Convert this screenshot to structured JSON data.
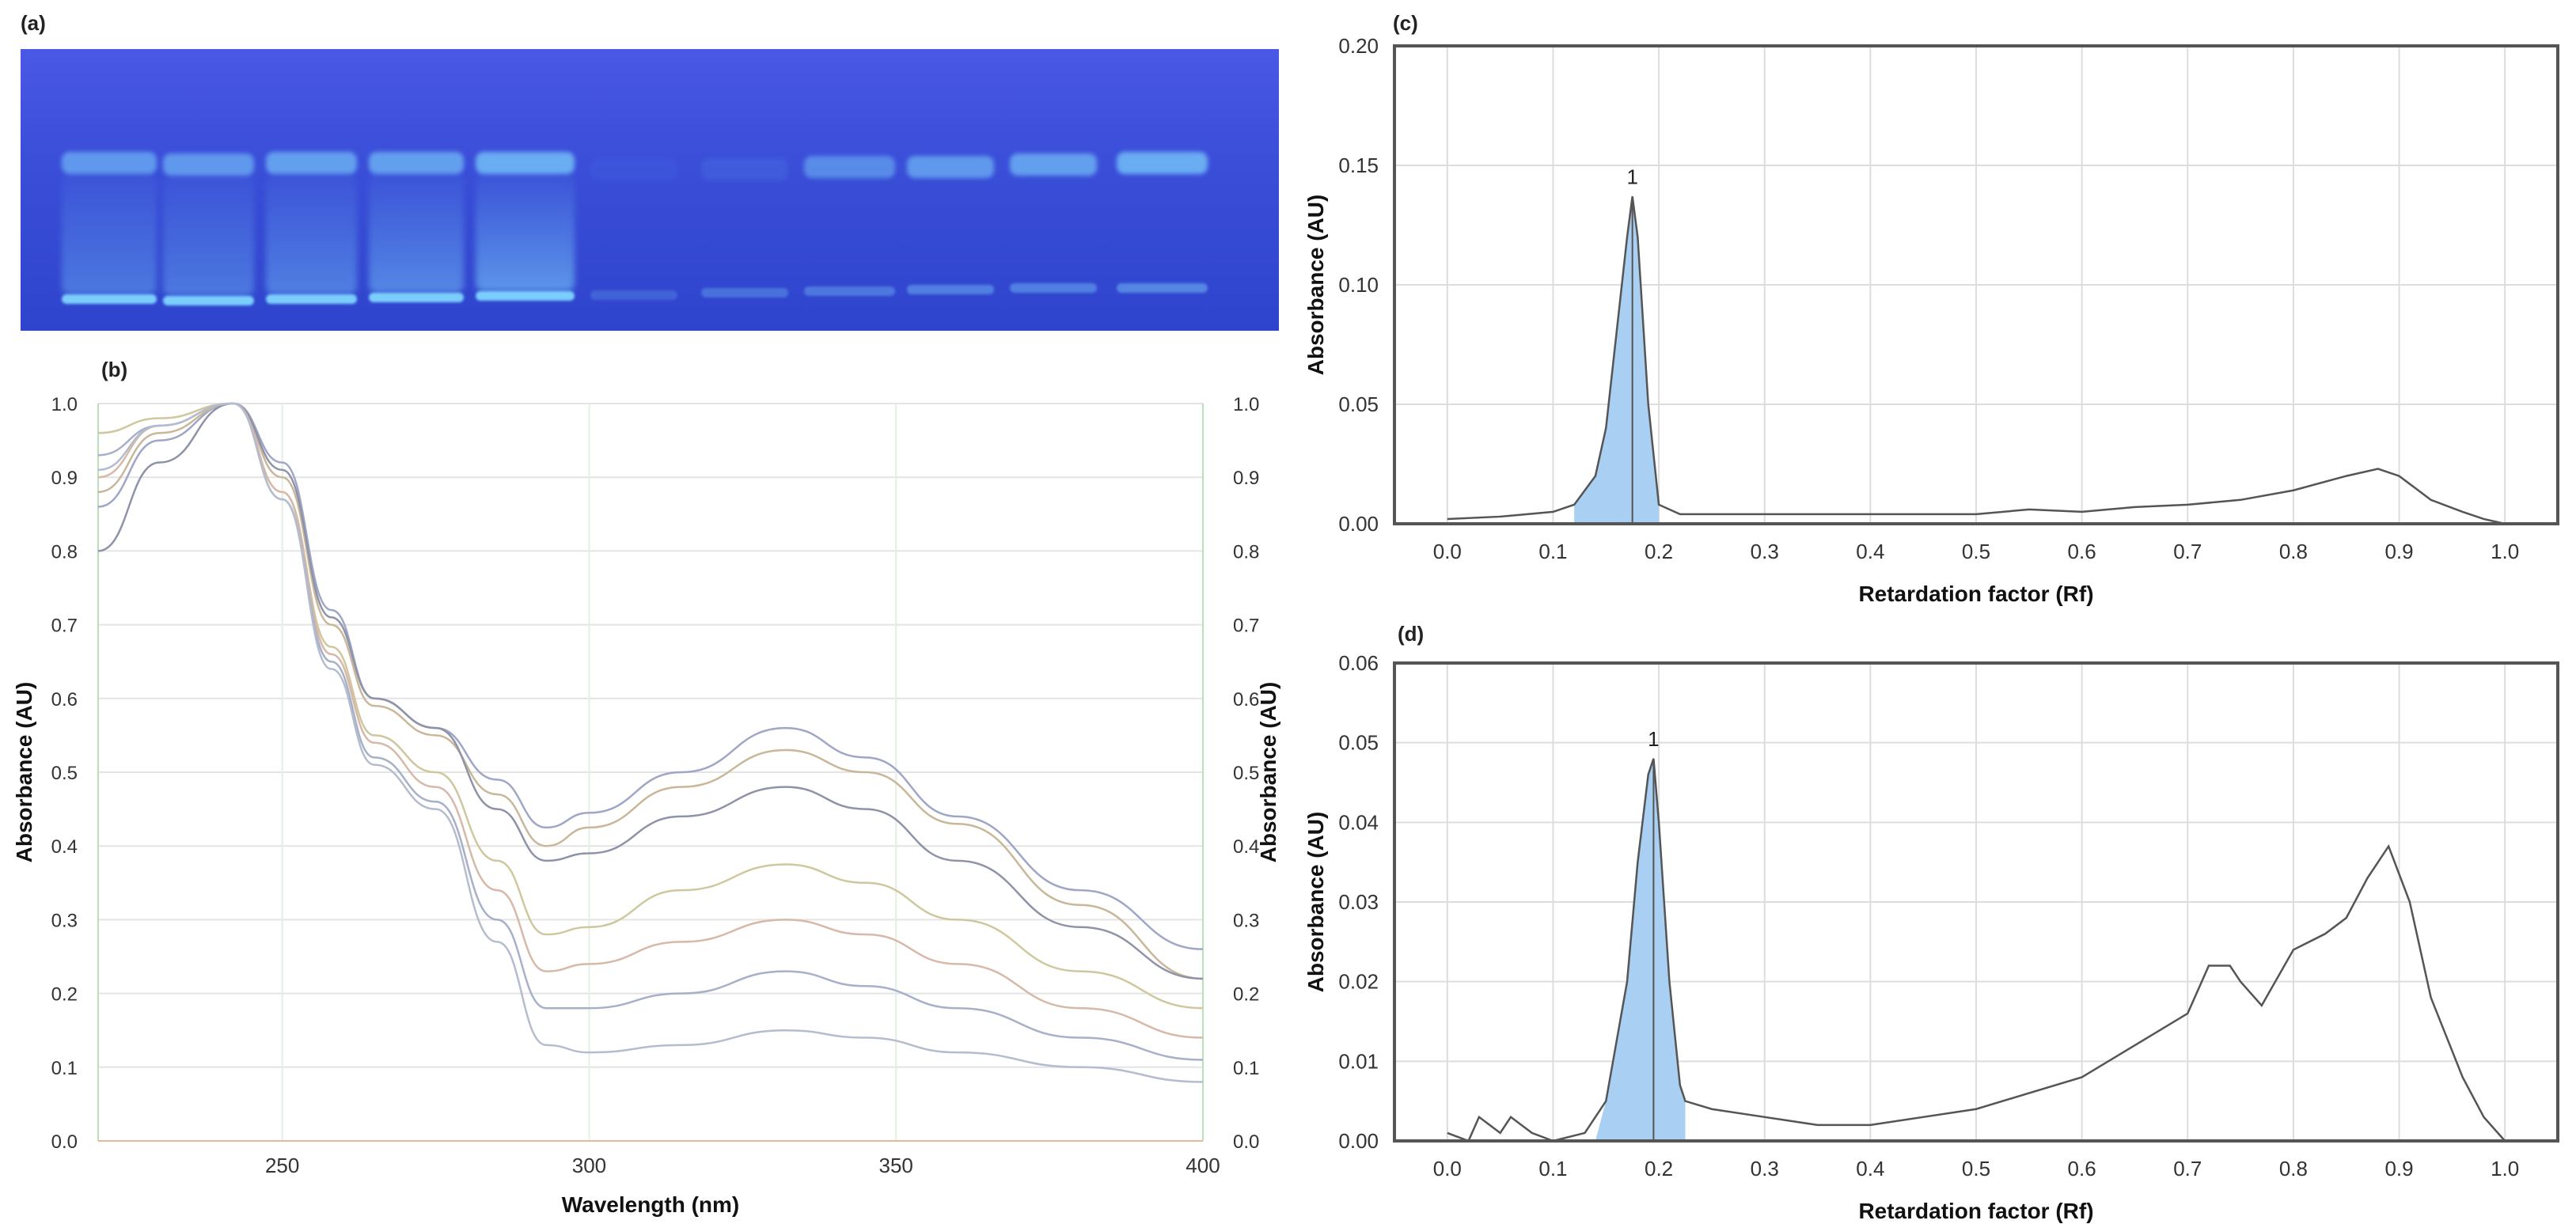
{
  "labels": {
    "a": "(a)",
    "b": "(b)",
    "c": "(c)",
    "d": "(d)"
  },
  "colors": {
    "plate": "#3a4ed8",
    "band": "#7fd6ff",
    "peak_fill": "#a9cff2",
    "trace": "#555555"
  },
  "chart_data": [
    {
      "panel": "b",
      "type": "line",
      "xlabel": "Wavelength (nm)",
      "ylabel": "Absorbance (AU)",
      "ylabel_right": "Absorbance (AU)",
      "xlim": [
        220,
        400
      ],
      "ylim": [
        0,
        1.0
      ],
      "xticks": [
        "250",
        "300",
        "350",
        "400"
      ],
      "yticks": [
        "0.0",
        "0.1",
        "0.2",
        "0.3",
        "0.4",
        "0.5",
        "0.6",
        "0.7",
        "0.8",
        "0.9",
        "1.0"
      ],
      "grid": true,
      "series": [
        {
          "color": "#9fa6c6",
          "x": [
            220,
            230,
            242,
            250,
            258,
            265,
            275,
            285,
            293,
            300,
            315,
            332,
            345,
            360,
            380,
            400
          ],
          "y": [
            0.86,
            0.95,
            1.0,
            0.92,
            0.72,
            0.6,
            0.56,
            0.49,
            0.425,
            0.445,
            0.5,
            0.56,
            0.52,
            0.44,
            0.34,
            0.26
          ]
        },
        {
          "color": "#c9b79a",
          "x": [
            220,
            230,
            242,
            250,
            258,
            265,
            275,
            285,
            293,
            300,
            315,
            332,
            345,
            360,
            380,
            400
          ],
          "y": [
            0.88,
            0.96,
            1.0,
            0.9,
            0.7,
            0.59,
            0.55,
            0.47,
            0.4,
            0.425,
            0.48,
            0.53,
            0.5,
            0.43,
            0.32,
            0.22
          ]
        },
        {
          "color": "#8f93a8",
          "x": [
            220,
            230,
            242,
            250,
            258,
            265,
            275,
            285,
            293,
            300,
            315,
            332,
            345,
            360,
            380,
            400
          ],
          "y": [
            0.8,
            0.92,
            1.0,
            0.91,
            0.71,
            0.6,
            0.56,
            0.45,
            0.38,
            0.39,
            0.44,
            0.48,
            0.45,
            0.38,
            0.29,
            0.22
          ]
        },
        {
          "color": "#cfc79e",
          "x": [
            220,
            230,
            242,
            250,
            258,
            265,
            275,
            285,
            293,
            300,
            315,
            332,
            345,
            360,
            380,
            400
          ],
          "y": [
            0.96,
            0.98,
            1.0,
            0.88,
            0.67,
            0.55,
            0.5,
            0.38,
            0.28,
            0.29,
            0.34,
            0.375,
            0.35,
            0.3,
            0.23,
            0.18
          ]
        },
        {
          "color": "#d6b9a8",
          "x": [
            220,
            230,
            242,
            250,
            258,
            265,
            275,
            285,
            293,
            300,
            315,
            332,
            345,
            360,
            380,
            400
          ],
          "y": [
            0.9,
            0.97,
            1.0,
            0.88,
            0.66,
            0.54,
            0.48,
            0.34,
            0.23,
            0.24,
            0.27,
            0.3,
            0.28,
            0.24,
            0.18,
            0.14
          ]
        },
        {
          "color": "#a7b0c9",
          "x": [
            220,
            230,
            242,
            250,
            258,
            265,
            275,
            285,
            293,
            300,
            315,
            332,
            345,
            360,
            380,
            400
          ],
          "y": [
            0.93,
            0.97,
            1.0,
            0.87,
            0.65,
            0.52,
            0.46,
            0.3,
            0.18,
            0.18,
            0.2,
            0.23,
            0.21,
            0.18,
            0.14,
            0.11
          ]
        },
        {
          "color": "#b4bccd",
          "x": [
            220,
            230,
            242,
            250,
            258,
            265,
            275,
            285,
            293,
            300,
            315,
            332,
            345,
            360,
            380,
            400
          ],
          "y": [
            0.91,
            0.97,
            1.0,
            0.87,
            0.64,
            0.51,
            0.45,
            0.27,
            0.13,
            0.12,
            0.13,
            0.15,
            0.14,
            0.12,
            0.1,
            0.08
          ]
        }
      ]
    },
    {
      "panel": "c",
      "type": "area",
      "xlabel": "Retardation factor (Rf)",
      "ylabel": "Absorbance (AU)",
      "xlim": [
        -0.05,
        1.05
      ],
      "ylim": [
        0,
        0.2
      ],
      "xticks": [
        "0.0",
        "0.1",
        "0.2",
        "0.3",
        "0.4",
        "0.5",
        "0.6",
        "0.7",
        "0.8",
        "0.9",
        "1.0"
      ],
      "yticks": [
        "0.00",
        "0.05",
        "0.10",
        "0.15",
        "0.20"
      ],
      "grid": true,
      "peak": {
        "label": "1",
        "rf": 0.175,
        "value": 0.137,
        "range": [
          0.12,
          0.2
        ]
      },
      "x": [
        0.0,
        0.05,
        0.1,
        0.12,
        0.14,
        0.15,
        0.16,
        0.17,
        0.175,
        0.18,
        0.19,
        0.2,
        0.22,
        0.3,
        0.4,
        0.5,
        0.55,
        0.6,
        0.65,
        0.7,
        0.75,
        0.8,
        0.85,
        0.88,
        0.9,
        0.93,
        0.96,
        0.98,
        1.0
      ],
      "y": [
        0.002,
        0.003,
        0.005,
        0.008,
        0.02,
        0.04,
        0.08,
        0.12,
        0.137,
        0.12,
        0.05,
        0.008,
        0.004,
        0.004,
        0.004,
        0.004,
        0.006,
        0.005,
        0.007,
        0.008,
        0.01,
        0.014,
        0.02,
        0.023,
        0.02,
        0.01,
        0.005,
        0.002,
        0.0
      ]
    },
    {
      "panel": "d",
      "type": "area",
      "xlabel": "Retardation factor (Rf)",
      "ylabel": "Absorbance (AU)",
      "xlim": [
        -0.05,
        1.05
      ],
      "ylim": [
        0,
        0.06
      ],
      "xticks": [
        "0.0",
        "0.1",
        "0.2",
        "0.3",
        "0.4",
        "0.5",
        "0.6",
        "0.7",
        "0.8",
        "0.9",
        "1.0"
      ],
      "yticks": [
        "0.00",
        "0.01",
        "0.02",
        "0.03",
        "0.04",
        "0.05",
        "0.06"
      ],
      "grid": true,
      "peak": {
        "label": "1",
        "rf": 0.195,
        "value": 0.048,
        "range": [
          0.14,
          0.225
        ]
      },
      "x": [
        0.0,
        0.02,
        0.03,
        0.05,
        0.06,
        0.08,
        0.1,
        0.13,
        0.15,
        0.17,
        0.18,
        0.19,
        0.195,
        0.2,
        0.21,
        0.22,
        0.225,
        0.25,
        0.3,
        0.35,
        0.4,
        0.45,
        0.5,
        0.55,
        0.6,
        0.65,
        0.7,
        0.72,
        0.74,
        0.75,
        0.77,
        0.8,
        0.83,
        0.85,
        0.87,
        0.89,
        0.91,
        0.93,
        0.96,
        0.98,
        1.0
      ],
      "y": [
        0.001,
        0.0,
        0.003,
        0.001,
        0.003,
        0.001,
        0.0,
        0.001,
        0.005,
        0.02,
        0.035,
        0.046,
        0.048,
        0.04,
        0.02,
        0.007,
        0.005,
        0.004,
        0.003,
        0.002,
        0.002,
        0.003,
        0.004,
        0.006,
        0.008,
        0.012,
        0.016,
        0.022,
        0.022,
        0.02,
        0.017,
        0.024,
        0.026,
        0.028,
        0.033,
        0.037,
        0.03,
        0.018,
        0.008,
        0.003,
        0.0
      ]
    }
  ]
}
